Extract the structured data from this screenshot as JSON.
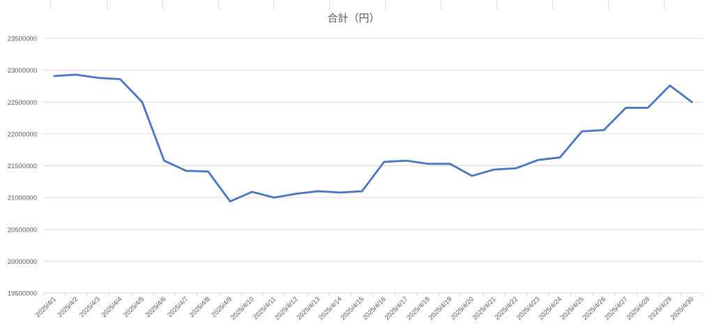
{
  "chart_data": {
    "type": "line",
    "title": "合計（円）",
    "xlabel": "",
    "ylabel": "",
    "categories": [
      "2025/4/1",
      "2025/4/2",
      "2025/4/3",
      "2025/4/4",
      "2025/4/5",
      "2025/4/6",
      "2025/4/7",
      "2025/4/8",
      "2025/4/9",
      "2025/4/10",
      "2025/4/11",
      "2025/4/12",
      "2025/4/13",
      "2025/4/14",
      "2025/4/15",
      "2025/4/16",
      "2025/4/17",
      "2025/4/18",
      "2025/4/19",
      "2025/4/20",
      "2025/4/21",
      "2025/4/22",
      "2025/4/23",
      "2025/4/24",
      "2025/4/25",
      "2025/4/26",
      "2025/4/27",
      "2025/4/28",
      "2025/4/29",
      "2025/4/30"
    ],
    "series": [
      {
        "color": "#4472c4",
        "values": [
          22910000,
          22930000,
          22880000,
          22860000,
          22500000,
          21580000,
          21420000,
          21410000,
          20940000,
          21090000,
          21000000,
          21060000,
          21100000,
          21080000,
          21100000,
          21560000,
          21580000,
          21530000,
          21530000,
          21340000,
          21440000,
          21460000,
          21590000,
          21630000,
          22040000,
          22060000,
          22410000,
          22410000,
          22760000,
          22500000
        ]
      }
    ],
    "ylim": [
      19500000,
      23500000
    ],
    "yticks": [
      "19500000",
      "20000000",
      "20500000",
      "21000000",
      "21500000",
      "22000000",
      "22500000",
      "23000000",
      "23500000"
    ],
    "grid": true,
    "legend": "none"
  }
}
